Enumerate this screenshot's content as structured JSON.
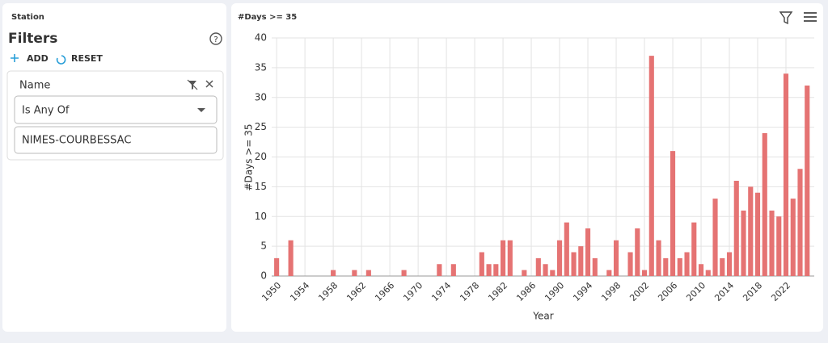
{
  "panel": {
    "section": "Station",
    "title": "Filters",
    "add": "ADD",
    "reset": "RESET",
    "filter": {
      "field": "Name",
      "operator": "Is Any Of",
      "value": "NIMES-COURBESSAC"
    }
  },
  "chart_data": {
    "type": "bar",
    "title": "#Days >= 35",
    "x_label": "Year",
    "y_label": "#Days >= 35",
    "x": [
      1950,
      1952,
      1958,
      1961,
      1963,
      1968,
      1973,
      1975,
      1979,
      1980,
      1981,
      1982,
      1983,
      1985,
      1987,
      1988,
      1989,
      1990,
      1991,
      1992,
      1993,
      1994,
      1995,
      1997,
      1998,
      2000,
      2001,
      2002,
      2003,
      2004,
      2005,
      2006,
      2007,
      2008,
      2009,
      2010,
      2011,
      2012,
      2013,
      2014,
      2015,
      2016,
      2017,
      2018,
      2019,
      2020,
      2021,
      2022,
      2023,
      2024,
      2025
    ],
    "values": [
      3,
      6,
      1,
      1,
      1,
      1,
      2,
      2,
      4,
      2,
      2,
      6,
      6,
      1,
      3,
      2,
      1,
      6,
      9,
      4,
      5,
      8,
      3,
      1,
      6,
      4,
      8,
      1,
      37,
      6,
      3,
      21,
      3,
      4,
      9,
      2,
      1,
      13,
      3,
      4,
      16,
      11,
      15,
      14,
      24,
      11,
      10,
      34,
      13,
      18,
      32
    ],
    "color": "#e57373",
    "xlim": [
      1949.3,
      2026
    ],
    "xticks": [
      1950,
      1954,
      1958,
      1962,
      1966,
      1970,
      1974,
      1978,
      1982,
      1986,
      1990,
      1994,
      1998,
      2002,
      2006,
      2010,
      2014,
      2018,
      2022
    ],
    "ylim": [
      0,
      40
    ],
    "yticks": [
      0,
      5,
      10,
      15,
      20,
      25,
      30,
      35,
      40
    ],
    "grid": true
  }
}
